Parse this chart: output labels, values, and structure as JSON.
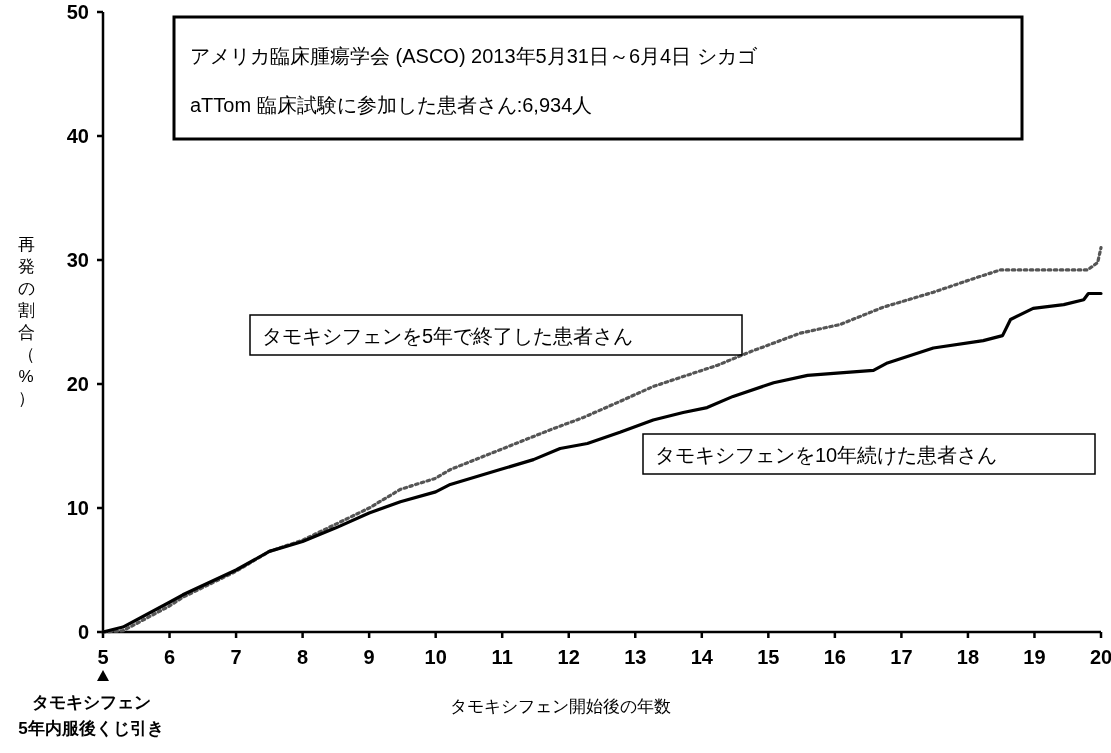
{
  "chart_data": {
    "type": "line",
    "title": "アメリカ臨床腫瘍学会 (ASCO) 2013年5月31日～6月4日 シカゴ",
    "subtitle": "aTTom 臨床試験に参加した患者さん:6,934人",
    "xlabel": "タモキシフェン開始後の年数",
    "ylabel": "再発の割合（%）",
    "xlim": [
      5,
      20
    ],
    "xticks": [
      5,
      6,
      7,
      8,
      9,
      10,
      11,
      12,
      13,
      14,
      15,
      16,
      17,
      18,
      19,
      20
    ],
    "ylim": [
      0,
      50
    ],
    "yticks": [
      0,
      10,
      20,
      30,
      40,
      50
    ],
    "grid": false,
    "annotations": [
      "タモキシフェン\n5年内服後くじ引き"
    ],
    "series": [
      {
        "name": "タモキシフェンを5年で終了した患者さん",
        "color": "#555555",
        "line_style": "dotted",
        "x": [
          5,
          5.3,
          6,
          6.2,
          7,
          7.5,
          8,
          8.5,
          9,
          9.47,
          10,
          10.22,
          10.97,
          11.72,
          12.22,
          12.73,
          13.27,
          13.72,
          14.23,
          14.73,
          15.48,
          16.08,
          16.73,
          17.48,
          18.14,
          18.49,
          19.8,
          19.95,
          20
        ],
        "values": [
          0,
          0.1,
          2.1,
          2.8,
          4.9,
          6.5,
          7.4,
          8.7,
          10.0,
          11.5,
          12.4,
          13.1,
          14.7,
          16.3,
          17.3,
          18.5,
          19.8,
          20.6,
          21.5,
          22.6,
          24.1,
          24.8,
          26.2,
          27.4,
          28.6,
          29.2,
          29.2,
          29.8,
          31.0
        ]
      },
      {
        "name": "タモキシフェンを10年続けた患者さん",
        "color": "#000000",
        "line_style": "solid",
        "x": [
          5,
          5.3,
          6,
          6.2,
          7,
          7.5,
          8,
          8.5,
          9,
          9.47,
          10,
          10.22,
          10.97,
          11.47,
          11.87,
          12.28,
          12.77,
          13.27,
          13.72,
          14.08,
          14.47,
          15.08,
          15.59,
          16.08,
          16.58,
          16.79,
          17.48,
          18.23,
          18.52,
          18.64,
          18.98,
          19.44,
          19.74,
          19.81,
          20
        ],
        "values": [
          0,
          0.4,
          2.4,
          3.0,
          5.0,
          6.5,
          7.3,
          8.4,
          9.6,
          10.5,
          11.3,
          11.9,
          13.1,
          13.9,
          14.8,
          15.2,
          16.1,
          17.1,
          17.7,
          18.1,
          19.0,
          20.1,
          20.7,
          20.9,
          21.1,
          21.7,
          22.9,
          23.5,
          23.9,
          25.2,
          26.1,
          26.4,
          26.8,
          27.3,
          27.3
        ]
      }
    ]
  }
}
